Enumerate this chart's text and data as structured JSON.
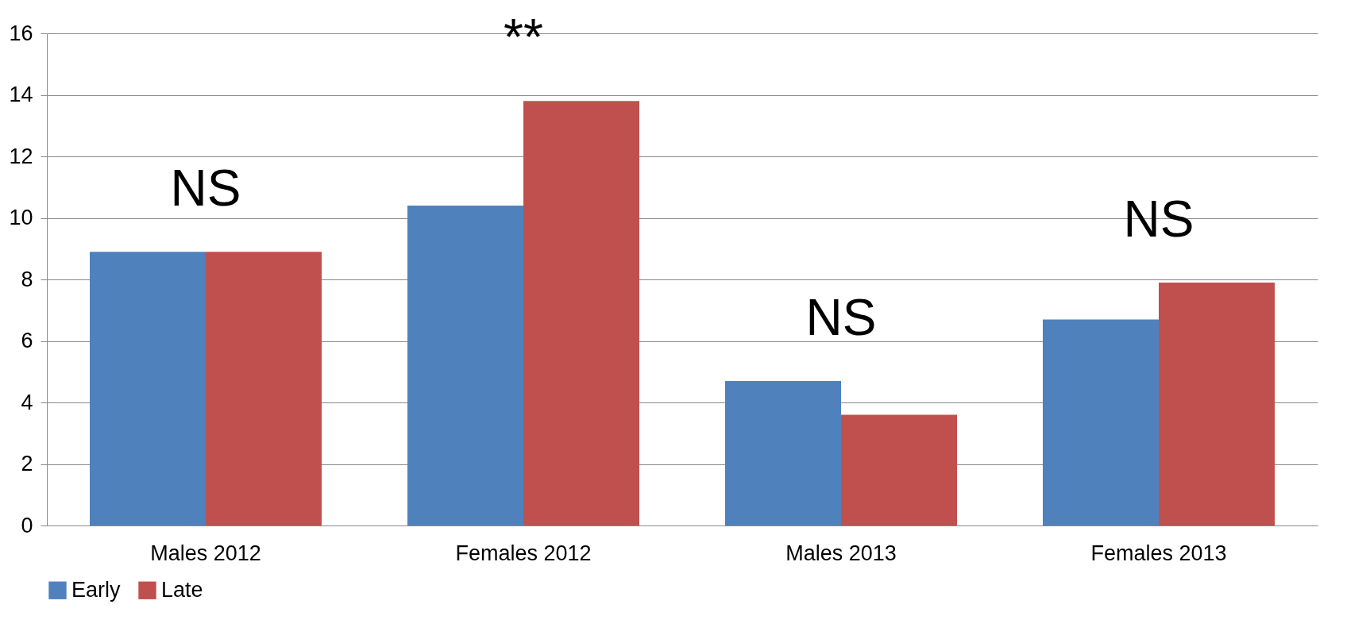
{
  "chart_data": {
    "type": "bar",
    "categories": [
      "Males 2012",
      "Females 2012",
      "Males 2013",
      "Females 2013"
    ],
    "series": [
      {
        "name": "Early",
        "color": "#4f81bd",
        "values": [
          8.9,
          10.4,
          4.7,
          6.7
        ]
      },
      {
        "name": "Late",
        "color": "#c0504d",
        "values": [
          8.9,
          13.8,
          3.6,
          7.9
        ]
      }
    ],
    "ylim": [
      0,
      16
    ],
    "yticks": [
      0,
      2,
      4,
      6,
      8,
      10,
      12,
      14,
      16
    ],
    "grid": "y",
    "legend": "bottom",
    "annotations": [
      "NS",
      "**",
      "NS",
      "NS"
    ]
  }
}
